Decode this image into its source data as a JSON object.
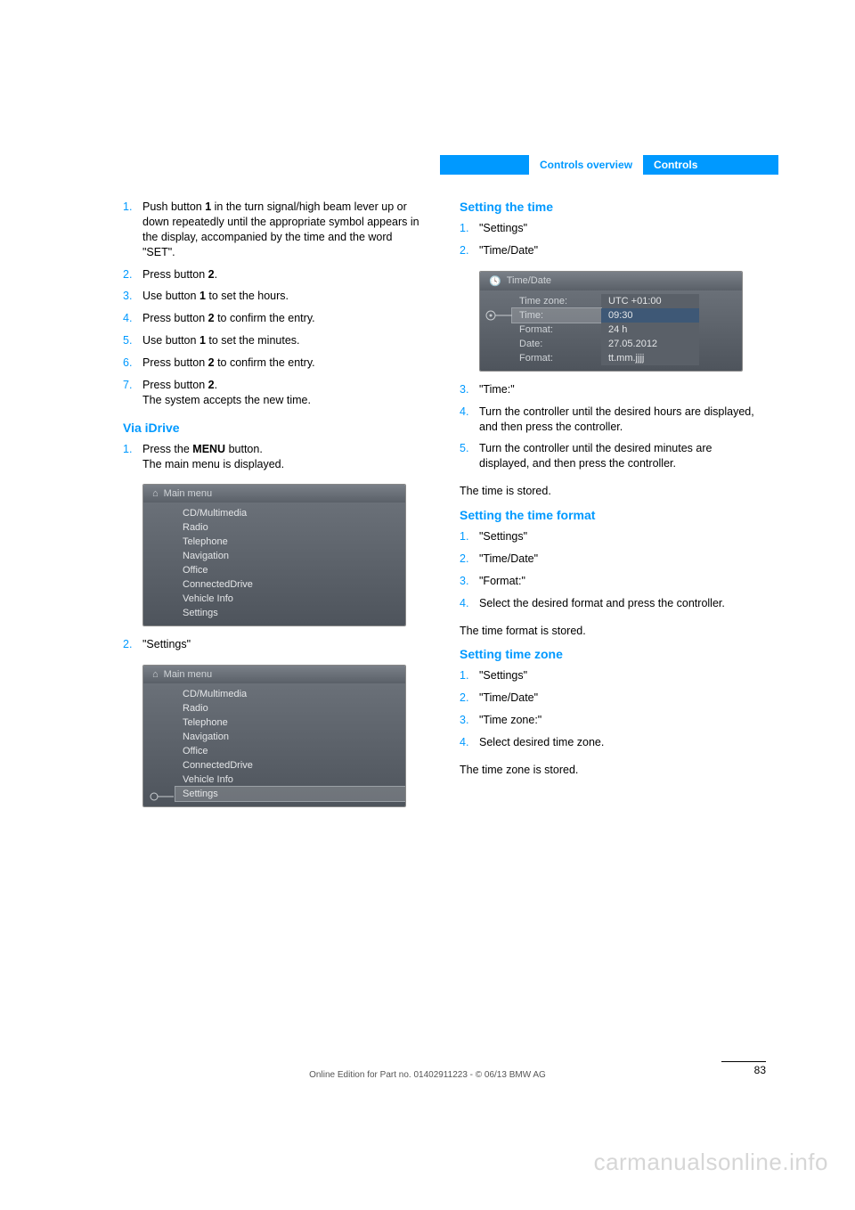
{
  "colors": {
    "accent": "#0099ff",
    "tab_bg": "#0099ff",
    "tab_fg": "#ffffff",
    "body": "#000000",
    "shot_bg1": "#6a7078",
    "shot_bg2": "#4e545c",
    "shot_text": "#e4e6e8",
    "shot_muted": "#d0d4d8",
    "watermark": "#d6d6d6"
  },
  "fonts": {
    "body_size": 12.5,
    "h3_size": 14,
    "footer_size": 10,
    "shot_size": 11
  },
  "header": {
    "breadcrumb_left": "Controls overview",
    "breadcrumb_right": "Controls"
  },
  "col1": {
    "steps_a": [
      {
        "n": "1.",
        "t": "Push button <b>1</b> in the turn signal/high beam lever up or down repeatedly until the appropriate symbol appears in the display, accompanied by the time and the word \"SET\"."
      },
      {
        "n": "2.",
        "t": "Press button <b>2</b>."
      },
      {
        "n": "3.",
        "t": "Use button <b>1</b> to set the hours."
      },
      {
        "n": "4.",
        "t": "Press button <b>2</b> to confirm the entry."
      },
      {
        "n": "5.",
        "t": "Use button <b>1</b> to set the minutes."
      },
      {
        "n": "6.",
        "t": "Press button <b>2</b> to confirm the entry."
      },
      {
        "n": "7.",
        "t": "Press button <b>2</b>.<br>The system accepts the new time."
      }
    ],
    "h_via": "Via iDrive",
    "steps_b1": [
      {
        "n": "1.",
        "t": "Press the <b>MENU</b> button.<br>The main menu is displayed."
      }
    ],
    "shot1": {
      "title": "Main menu",
      "items": [
        "CD/Multimedia",
        "Radio",
        "Telephone",
        "Navigation",
        "Office",
        "ConnectedDrive",
        "Vehicle Info",
        "Settings"
      ],
      "selected_index": -1
    },
    "steps_b2": [
      {
        "n": "2.",
        "t": "\"Settings\""
      }
    ],
    "shot2": {
      "title": "Main menu",
      "items": [
        "CD/Multimedia",
        "Radio",
        "Telephone",
        "Navigation",
        "Office",
        "ConnectedDrive",
        "Vehicle Info",
        "Settings"
      ],
      "selected_index": 7
    }
  },
  "col2": {
    "h_time": "Setting the time",
    "steps_time_a": [
      {
        "n": "1.",
        "t": "\"Settings\""
      },
      {
        "n": "2.",
        "t": "\"Time/Date\""
      }
    ],
    "shot_time": {
      "title": "Time/Date",
      "rows": [
        {
          "k": "Time zone:",
          "v": "UTC +01:00",
          "sel": false
        },
        {
          "k": "Time:",
          "v": "09:30",
          "sel": true
        },
        {
          "k": "Format:",
          "v": "24 h",
          "sel": false
        },
        {
          "k": "Date:",
          "v": "27.05.2012",
          "sel": false
        },
        {
          "k": "Format:",
          "v": "tt.mm.jjjj",
          "sel": false
        }
      ]
    },
    "steps_time_b": [
      {
        "n": "3.",
        "t": "\"Time:\""
      },
      {
        "n": "4.",
        "t": "Turn the controller until the desired hours are displayed, and then press the controller."
      },
      {
        "n": "5.",
        "t": "Turn the controller until the desired minutes are displayed, and then press the controller."
      }
    ],
    "time_stored": "The time is stored.",
    "h_fmt": "Setting the time format",
    "steps_fmt": [
      {
        "n": "1.",
        "t": "\"Settings\""
      },
      {
        "n": "2.",
        "t": "\"Time/Date\""
      },
      {
        "n": "3.",
        "t": "\"Format:\""
      },
      {
        "n": "4.",
        "t": "Select the desired format and press the controller."
      }
    ],
    "fmt_stored": "The time format is stored.",
    "h_tz": "Setting time zone",
    "steps_tz": [
      {
        "n": "1.",
        "t": "\"Settings\""
      },
      {
        "n": "2.",
        "t": "\"Time/Date\""
      },
      {
        "n": "3.",
        "t": "\"Time zone:\""
      },
      {
        "n": "4.",
        "t": "Select desired time zone."
      }
    ],
    "tz_stored": "The time zone is stored."
  },
  "footer": {
    "line": "Online Edition for Part no. 01402911223 - © 06/13 BMW AG",
    "page": "83",
    "watermark": "carmanualsonline.info"
  }
}
